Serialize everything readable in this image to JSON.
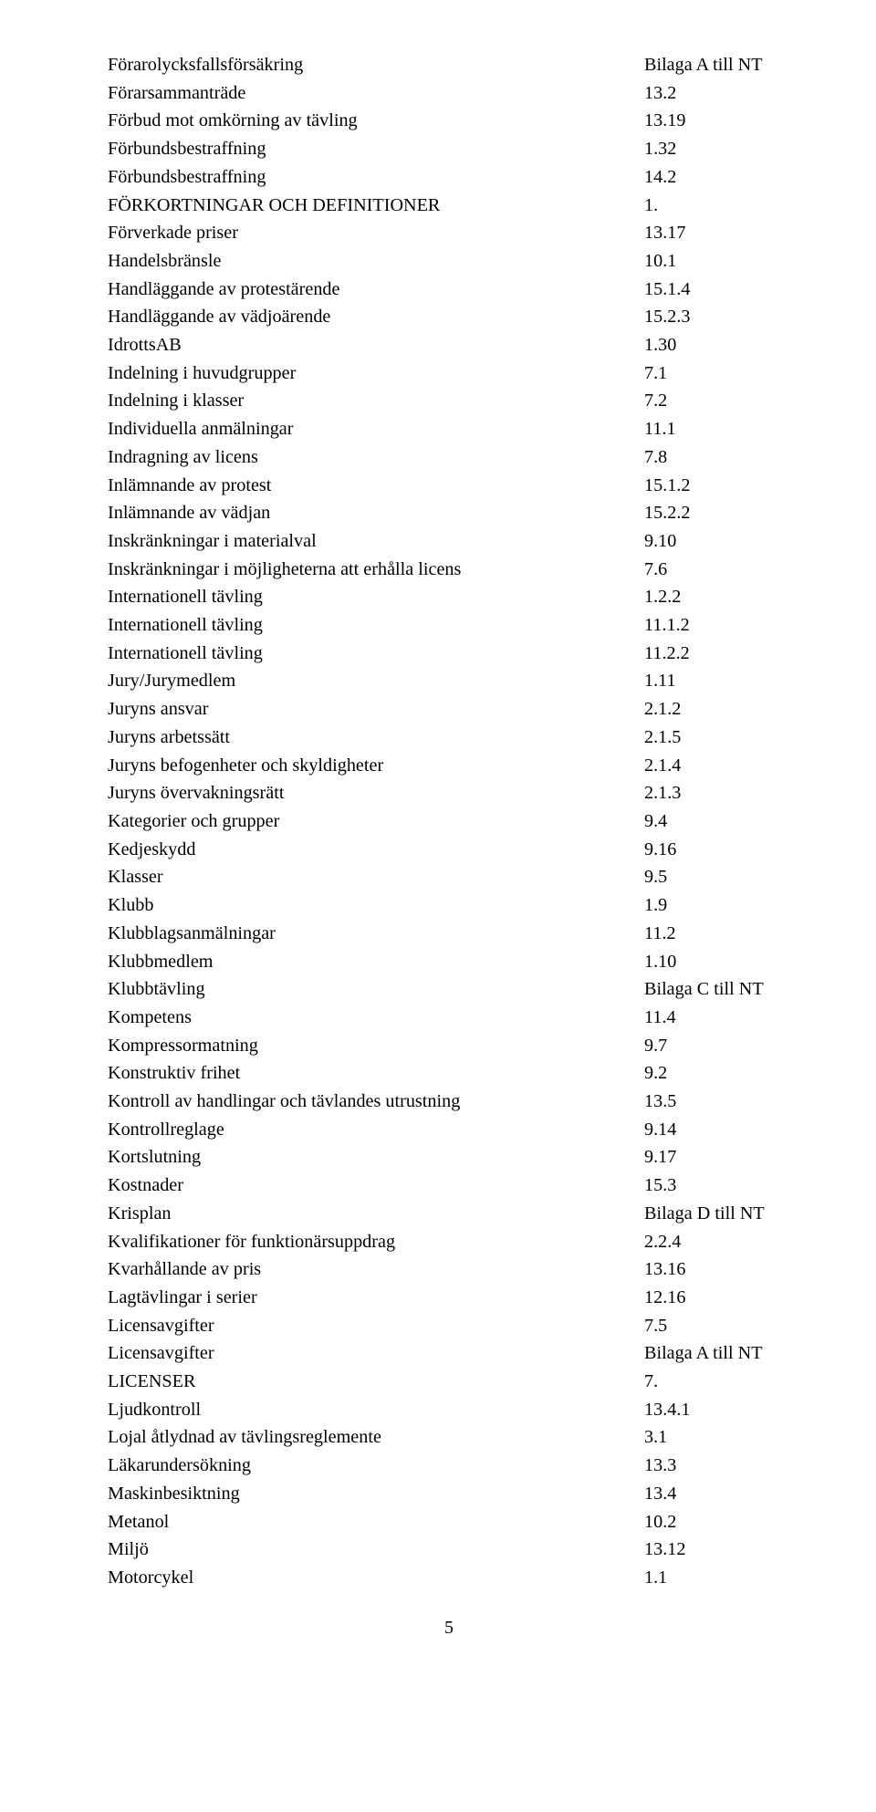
{
  "typography": {
    "font_family": "Georgia, serif",
    "font_size_pt": 15,
    "line_height": 1.52,
    "text_color": "#000000",
    "background_color": "#ffffff"
  },
  "pageNumber": "5",
  "entries": [
    {
      "term": "Förarolycksfallsförsäkring",
      "value": "Bilaga A till NT"
    },
    {
      "term": "Förarsammanträde",
      "value": "13.2"
    },
    {
      "term": "Förbud mot omkörning av tävling",
      "value": "13.19"
    },
    {
      "term": "Förbundsbestraffning",
      "value": "1.32"
    },
    {
      "term": "Förbundsbestraffning",
      "value": "14.2"
    },
    {
      "term": "FÖRKORTNINGAR OCH DEFINITIONER",
      "value": "1."
    },
    {
      "term": "Förverkade priser",
      "value": "13.17"
    },
    {
      "term": "Handelsbränsle",
      "value": "10.1"
    },
    {
      "term": "Handläggande av protestärende",
      "value": "15.1.4"
    },
    {
      "term": "Handläggande av vädjoärende",
      "value": "15.2.3"
    },
    {
      "term": "IdrottsAB",
      "value": "1.30"
    },
    {
      "term": "Indelning i huvudgrupper",
      "value": "7.1"
    },
    {
      "term": "Indelning i klasser",
      "value": "7.2"
    },
    {
      "term": "Individuella anmälningar",
      "value": "11.1"
    },
    {
      "term": "Indragning av licens",
      "value": "7.8"
    },
    {
      "term": "Inlämnande av protest",
      "value": "15.1.2"
    },
    {
      "term": "Inlämnande av vädjan",
      "value": "15.2.2"
    },
    {
      "term": "Inskränkningar i materialval",
      "value": "9.10"
    },
    {
      "term": "Inskränkningar i möjligheterna att erhålla licens",
      "value": "7.6"
    },
    {
      "term": "Internationell tävling",
      "value": "1.2.2"
    },
    {
      "term": "Internationell tävling",
      "value": "11.1.2"
    },
    {
      "term": "Internationell tävling",
      "value": "11.2.2"
    },
    {
      "term": "Jury/Jurymedlem",
      "value": "1.11"
    },
    {
      "term": "Juryns ansvar",
      "value": "2.1.2"
    },
    {
      "term": "Juryns arbetssätt",
      "value": "2.1.5"
    },
    {
      "term": "Juryns befogenheter och skyldigheter",
      "value": "2.1.4"
    },
    {
      "term": "Juryns övervakningsrätt",
      "value": "2.1.3"
    },
    {
      "term": "Kategorier och grupper",
      "value": "9.4"
    },
    {
      "term": "Kedjeskydd",
      "value": "9.16"
    },
    {
      "term": "Klasser",
      "value": "9.5"
    },
    {
      "term": "Klubb",
      "value": "1.9"
    },
    {
      "term": "Klubblagsanmälningar",
      "value": "11.2"
    },
    {
      "term": "Klubbmedlem",
      "value": "1.10"
    },
    {
      "term": "Klubbtävling",
      "value": "Bilaga C till NT"
    },
    {
      "term": "Kompetens",
      "value": "11.4"
    },
    {
      "term": "Kompressormatning",
      "value": "9.7"
    },
    {
      "term": "Konstruktiv frihet",
      "value": "9.2"
    },
    {
      "term": "Kontroll av handlingar och tävlandes utrustning",
      "value": "13.5"
    },
    {
      "term": "Kontrollreglage",
      "value": "9.14"
    },
    {
      "term": "Kortslutning",
      "value": "9.17"
    },
    {
      "term": "Kostnader",
      "value": "15.3"
    },
    {
      "term": "Krisplan",
      "value": "Bilaga D till NT"
    },
    {
      "term": "Kvalifikationer för funktionärsuppdrag",
      "value": "2.2.4"
    },
    {
      "term": "Kvarhållande av pris",
      "value": "13.16"
    },
    {
      "term": "Lagtävlingar i serier",
      "value": "12.16"
    },
    {
      "term": "Licensavgifter",
      "value": "7.5"
    },
    {
      "term": "Licensavgifter",
      "value": "Bilaga A till NT"
    },
    {
      "term": "LICENSER",
      "value": "7."
    },
    {
      "term": "Ljudkontroll",
      "value": "13.4.1"
    },
    {
      "term": "Lojal åtlydnad av tävlingsreglemente",
      "value": "3.1"
    },
    {
      "term": "Läkarundersökning",
      "value": "13.3"
    },
    {
      "term": "Maskinbesiktning",
      "value": "13.4"
    },
    {
      "term": "Metanol",
      "value": "10.2"
    },
    {
      "term": "Miljö",
      "value": "13.12"
    },
    {
      "term": "Motorcykel",
      "value": "1.1"
    }
  ]
}
